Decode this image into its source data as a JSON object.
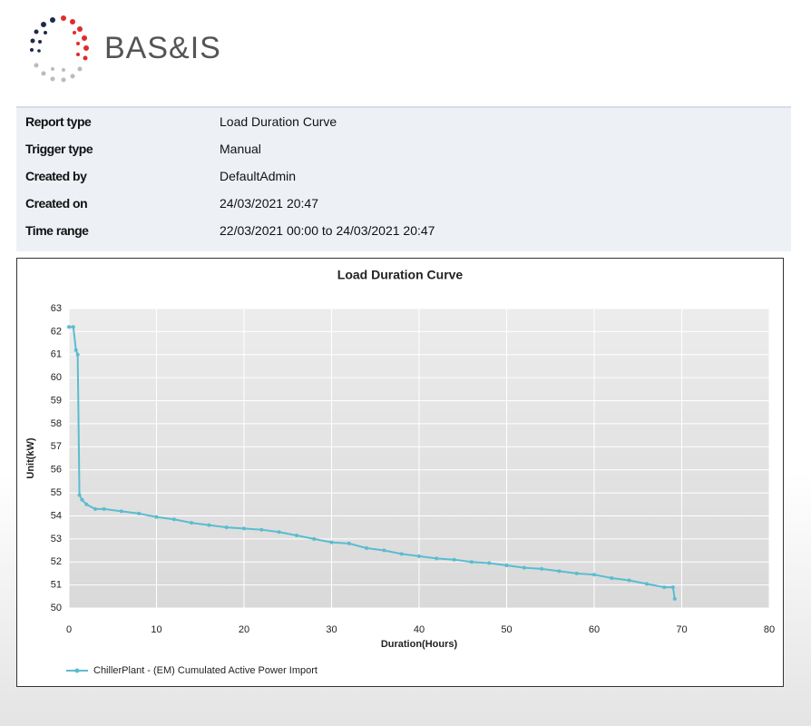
{
  "logo": "BAS&IS",
  "report_info": {
    "rows": [
      [
        "Report type",
        "Load Duration Curve"
      ],
      [
        "Trigger type",
        "Manual"
      ],
      [
        "Created by",
        "DefaultAdmin"
      ],
      [
        "Created on",
        "24/03/2021 20:47"
      ],
      [
        "Time range",
        "22/03/2021 00:00 to 24/03/2021 20:47"
      ]
    ]
  },
  "chart_data": {
    "type": "line",
    "title": "Load Duration Curve",
    "x_label": "Duration(Hours)",
    "y_label": "Unit(kW)",
    "xlim": [
      0,
      80
    ],
    "xticks": [
      0,
      10,
      20,
      30,
      40,
      50,
      60,
      70,
      80
    ],
    "ylim": [
      50,
      63
    ],
    "yticks": [
      50,
      51,
      52,
      53,
      54,
      55,
      56,
      57,
      58,
      59,
      60,
      61,
      62,
      63
    ],
    "grid": true,
    "series": [
      {
        "name": "ChillerPlant - (EM) Cumulated Active Power Import",
        "color": "#5bbcd0",
        "x": [
          0,
          0.5,
          0.8,
          1.0,
          1.2,
          1.5,
          2,
          3,
          4,
          6,
          8,
          10,
          12,
          14,
          16,
          18,
          20,
          22,
          24,
          26,
          28,
          30,
          32,
          34,
          36,
          38,
          40,
          42,
          44,
          46,
          48,
          50,
          52,
          54,
          56,
          58,
          60,
          62,
          64,
          66,
          68,
          69,
          69.2
        ],
        "values": [
          62.2,
          62.2,
          61.2,
          61.0,
          54.9,
          54.7,
          54.5,
          54.3,
          54.3,
          54.2,
          54.1,
          53.95,
          53.85,
          53.7,
          53.6,
          53.5,
          53.45,
          53.4,
          53.3,
          53.15,
          53.0,
          52.85,
          52.8,
          52.6,
          52.5,
          52.35,
          52.25,
          52.15,
          52.1,
          52.0,
          51.95,
          51.85,
          51.75,
          51.7,
          51.6,
          51.5,
          51.45,
          51.3,
          51.2,
          51.05,
          50.9,
          50.9,
          50.4
        ]
      }
    ]
  }
}
